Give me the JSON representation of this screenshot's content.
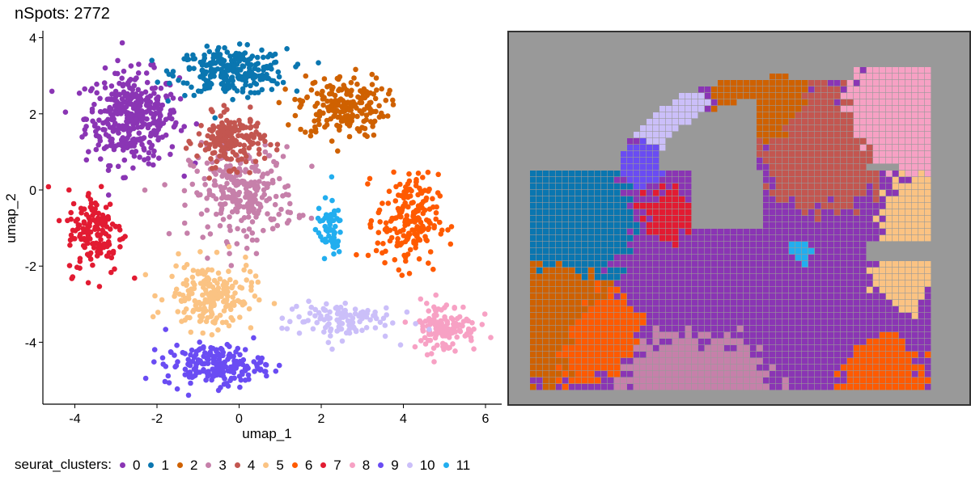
{
  "title": "nSpots: 2772",
  "chart_data": [
    {
      "type": "scatter",
      "xlabel": "umap_1",
      "ylabel": "umap_2",
      "xlim": [
        -4.6,
        6.3
      ],
      "ylim": [
        -5.6,
        4.2
      ],
      "xticks": [
        "-4",
        "-2",
        "0",
        "2",
        "4",
        "6"
      ],
      "yticks": [
        "-4",
        "-2",
        "0",
        "2",
        "4"
      ],
      "grid": false,
      "cluster_centers": [
        {
          "cluster": "0",
          "x": -2.6,
          "y": 1.9,
          "spread": [
            0.75,
            0.8
          ],
          "n": 380
        },
        {
          "cluster": "1",
          "x": -0.2,
          "y": 3.1,
          "spread": [
            0.9,
            0.4
          ],
          "n": 260
        },
        {
          "cluster": "2",
          "x": 2.5,
          "y": 2.2,
          "spread": [
            0.7,
            0.55
          ],
          "n": 200
        },
        {
          "cluster": "3",
          "x": 0.1,
          "y": -0.1,
          "spread": [
            0.85,
            0.8
          ],
          "n": 260
        },
        {
          "cluster": "4",
          "x": -0.2,
          "y": 1.3,
          "spread": [
            0.55,
            0.45
          ],
          "n": 180
        },
        {
          "cluster": "5",
          "x": -0.7,
          "y": -2.8,
          "spread": [
            0.7,
            0.6
          ],
          "n": 190
        },
        {
          "cluster": "6",
          "x": 4.1,
          "y": -0.8,
          "spread": [
            0.5,
            0.8
          ],
          "n": 190
        },
        {
          "cluster": "7",
          "x": -3.5,
          "y": -1.1,
          "spread": [
            0.45,
            0.75
          ],
          "n": 150
        },
        {
          "cluster": "8",
          "x": 5.0,
          "y": -3.6,
          "spread": [
            0.55,
            0.45
          ],
          "n": 130
        },
        {
          "cluster": "9",
          "x": -0.6,
          "y": -4.6,
          "spread": [
            0.8,
            0.35
          ],
          "n": 190
        },
        {
          "cluster": "10",
          "x": 2.4,
          "y": -3.4,
          "spread": [
            0.9,
            0.35
          ],
          "n": 110
        },
        {
          "cluster": "11",
          "x": 2.2,
          "y": -1.0,
          "spread": [
            0.2,
            0.5
          ],
          "n": 60
        }
      ]
    },
    {
      "type": "heatmap",
      "description_label": "spatial spot map",
      "background": "#999999"
    }
  ],
  "legend": {
    "title": "seurat_clusters:",
    "items": [
      {
        "label": "0",
        "color": "#8a35b4"
      },
      {
        "label": "1",
        "color": "#0a76b0"
      },
      {
        "label": "2",
        "color": "#cf6100"
      },
      {
        "label": "3",
        "color": "#c680aa"
      },
      {
        "label": "4",
        "color": "#c35650"
      },
      {
        "label": "5",
        "color": "#fbc383"
      },
      {
        "label": "6",
        "color": "#ff5a00"
      },
      {
        "label": "7",
        "color": "#e21b32"
      },
      {
        "label": "8",
        "color": "#f7a1c4"
      },
      {
        "label": "9",
        "color": "#6a4cf3"
      },
      {
        "label": "10",
        "color": "#cbbff9"
      },
      {
        "label": "11",
        "color": "#22aeef"
      }
    ]
  }
}
